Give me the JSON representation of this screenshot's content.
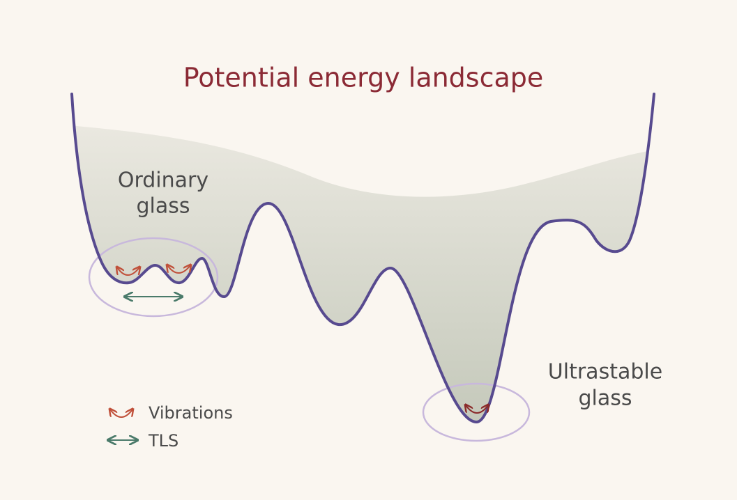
{
  "title": "Potential energy landscape",
  "regions": [
    {
      "label_lines": [
        "Ordinary",
        "glass"
      ]
    },
    {
      "label_lines": [
        "Ultrastable",
        "glass"
      ]
    }
  ],
  "legend": [
    {
      "label": "Vibrations"
    },
    {
      "label": "TLS"
    }
  ]
}
